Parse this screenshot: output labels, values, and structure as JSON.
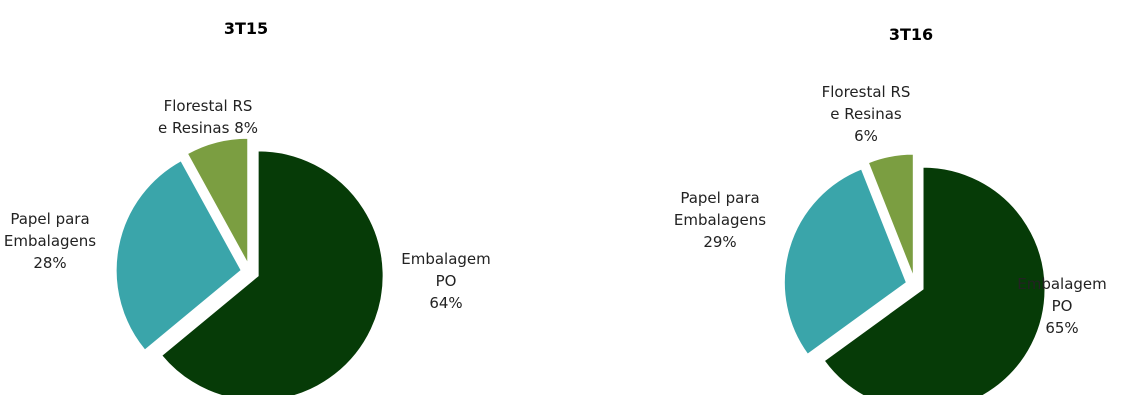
{
  "chart_data": [
    {
      "type": "pie",
      "title": "3T15",
      "slices": [
        {
          "name": "Embalagem PO",
          "value": 64,
          "color": "#063b07",
          "label_lines": [
            "Embalagem",
            "PO",
            "64%"
          ]
        },
        {
          "name": "Papel para Embalagens",
          "value": 28,
          "color": "#3aa5aa",
          "label_lines": [
            "Papel para",
            "Embalagens",
            "28%"
          ]
        },
        {
          "name": "Florestal RS e Resinas",
          "value": 8,
          "color": "#7b9e41",
          "label_lines": [
            "Florestal RS",
            "e Resinas 8%"
          ]
        }
      ]
    },
    {
      "type": "pie",
      "title": "3T16",
      "slices": [
        {
          "name": "Embalagem PO",
          "value": 65,
          "color": "#063b07",
          "label_lines": [
            "Embalagem",
            "PO",
            "65%"
          ]
        },
        {
          "name": "Papel para Embalagens",
          "value": 29,
          "color": "#3aa5aa",
          "label_lines": [
            "Papel para",
            "Embalagens",
            "29%"
          ]
        },
        {
          "name": "Florestal RS e Resinas",
          "value": 6,
          "color": "#7b9e41",
          "label_lines": [
            "Florestal RS",
            "e Resinas",
            "6%"
          ]
        }
      ]
    }
  ]
}
